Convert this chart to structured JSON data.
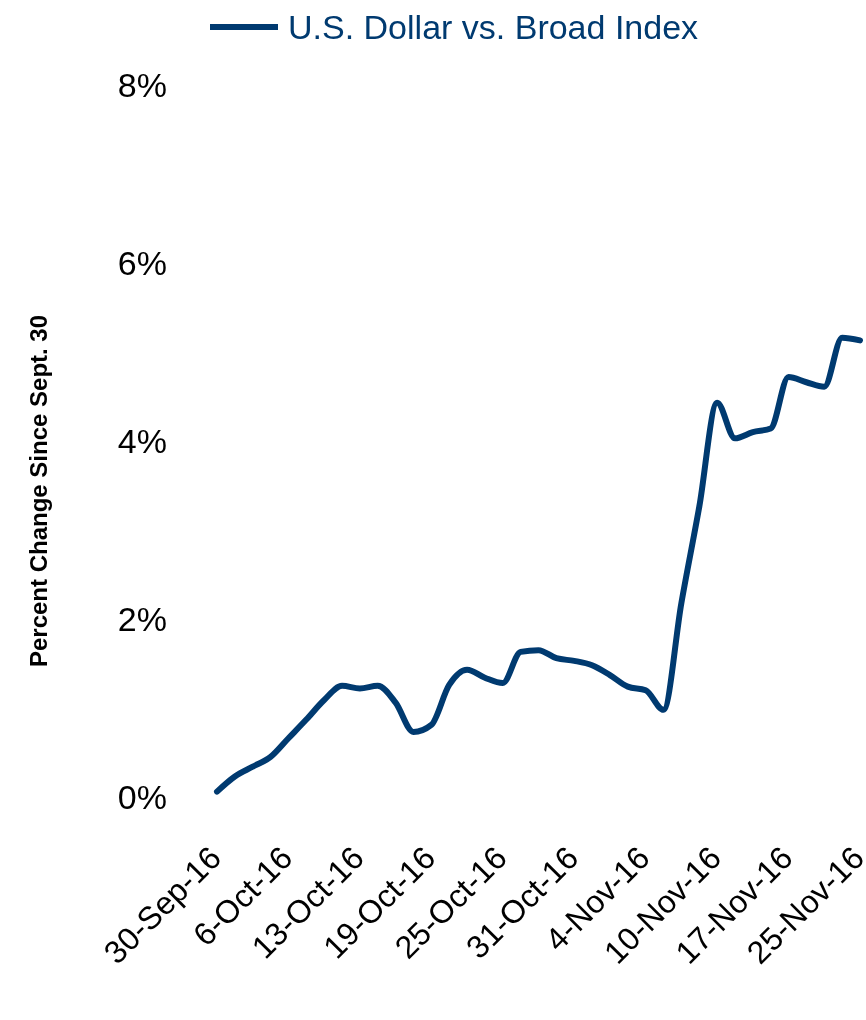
{
  "chart_data": {
    "type": "line",
    "ylabel": "Percent Change Since Sept. 30",
    "categories": [
      "30-Sep-16",
      null,
      null,
      null,
      "6-Oct-16",
      null,
      null,
      null,
      "13-Oct-16",
      null,
      null,
      null,
      "19-Oct-16",
      null,
      null,
      null,
      "25-Oct-16",
      null,
      null,
      null,
      "31-Oct-16",
      null,
      null,
      null,
      "4-Nov-16",
      null,
      null,
      null,
      "10-Nov-16",
      null,
      null,
      null,
      "17-Nov-16",
      null,
      null,
      null,
      "25-Nov-16"
    ],
    "series": [
      {
        "name": "U.S. Dollar vs. Broad Index",
        "color": "#003a70",
        "values": [
          0.06,
          0.23,
          0.34,
          0.45,
          0.66,
          0.87,
          1.09,
          1.25,
          1.22,
          1.25,
          1.06,
          0.73,
          0.81,
          1.26,
          1.43,
          1.34,
          1.28,
          1.63,
          1.65,
          1.56,
          1.53,
          1.48,
          1.37,
          1.24,
          1.2,
          0.98,
          2.18,
          3.26,
          4.43,
          4.03,
          4.1,
          4.14,
          4.72,
          4.66,
          4.61,
          5.16,
          5.13
        ]
      }
    ],
    "ylim": [
      0,
      8
    ],
    "yticks": [
      {
        "value": 0,
        "label": "0%"
      },
      {
        "value": 2,
        "label": "2%"
      },
      {
        "value": 4,
        "label": "4%"
      },
      {
        "value": 6,
        "label": "6%"
      },
      {
        "value": 8,
        "label": "8%"
      }
    ],
    "legend": "top",
    "grid": false,
    "marker": "none",
    "line_style": "solid"
  }
}
